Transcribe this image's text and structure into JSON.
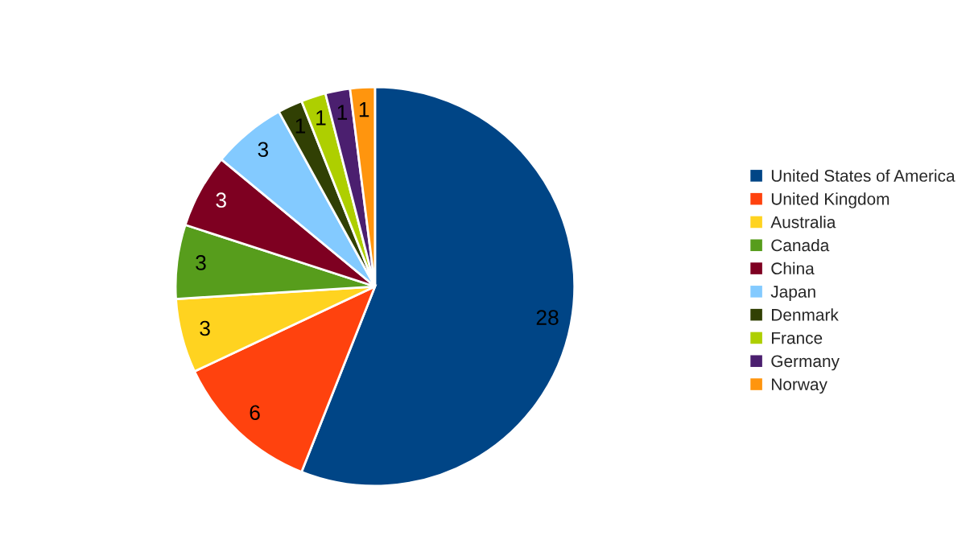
{
  "chart_data": {
    "type": "pie",
    "categories": [
      "United States of America",
      "United Kingdom",
      "Australia",
      "Canada",
      "China",
      "Japan",
      "Denmark",
      "France",
      "Germany",
      "Norway"
    ],
    "values": [
      28,
      6,
      3,
      3,
      3,
      3,
      1,
      1,
      1,
      1
    ],
    "colors": [
      "#004586",
      "#ff420e",
      "#ffd320",
      "#579d1c",
      "#7e0021",
      "#83caff",
      "#314004",
      "#aecf00",
      "#4b1f6f",
      "#ff950e"
    ],
    "data_labels": true,
    "legend": "right"
  }
}
